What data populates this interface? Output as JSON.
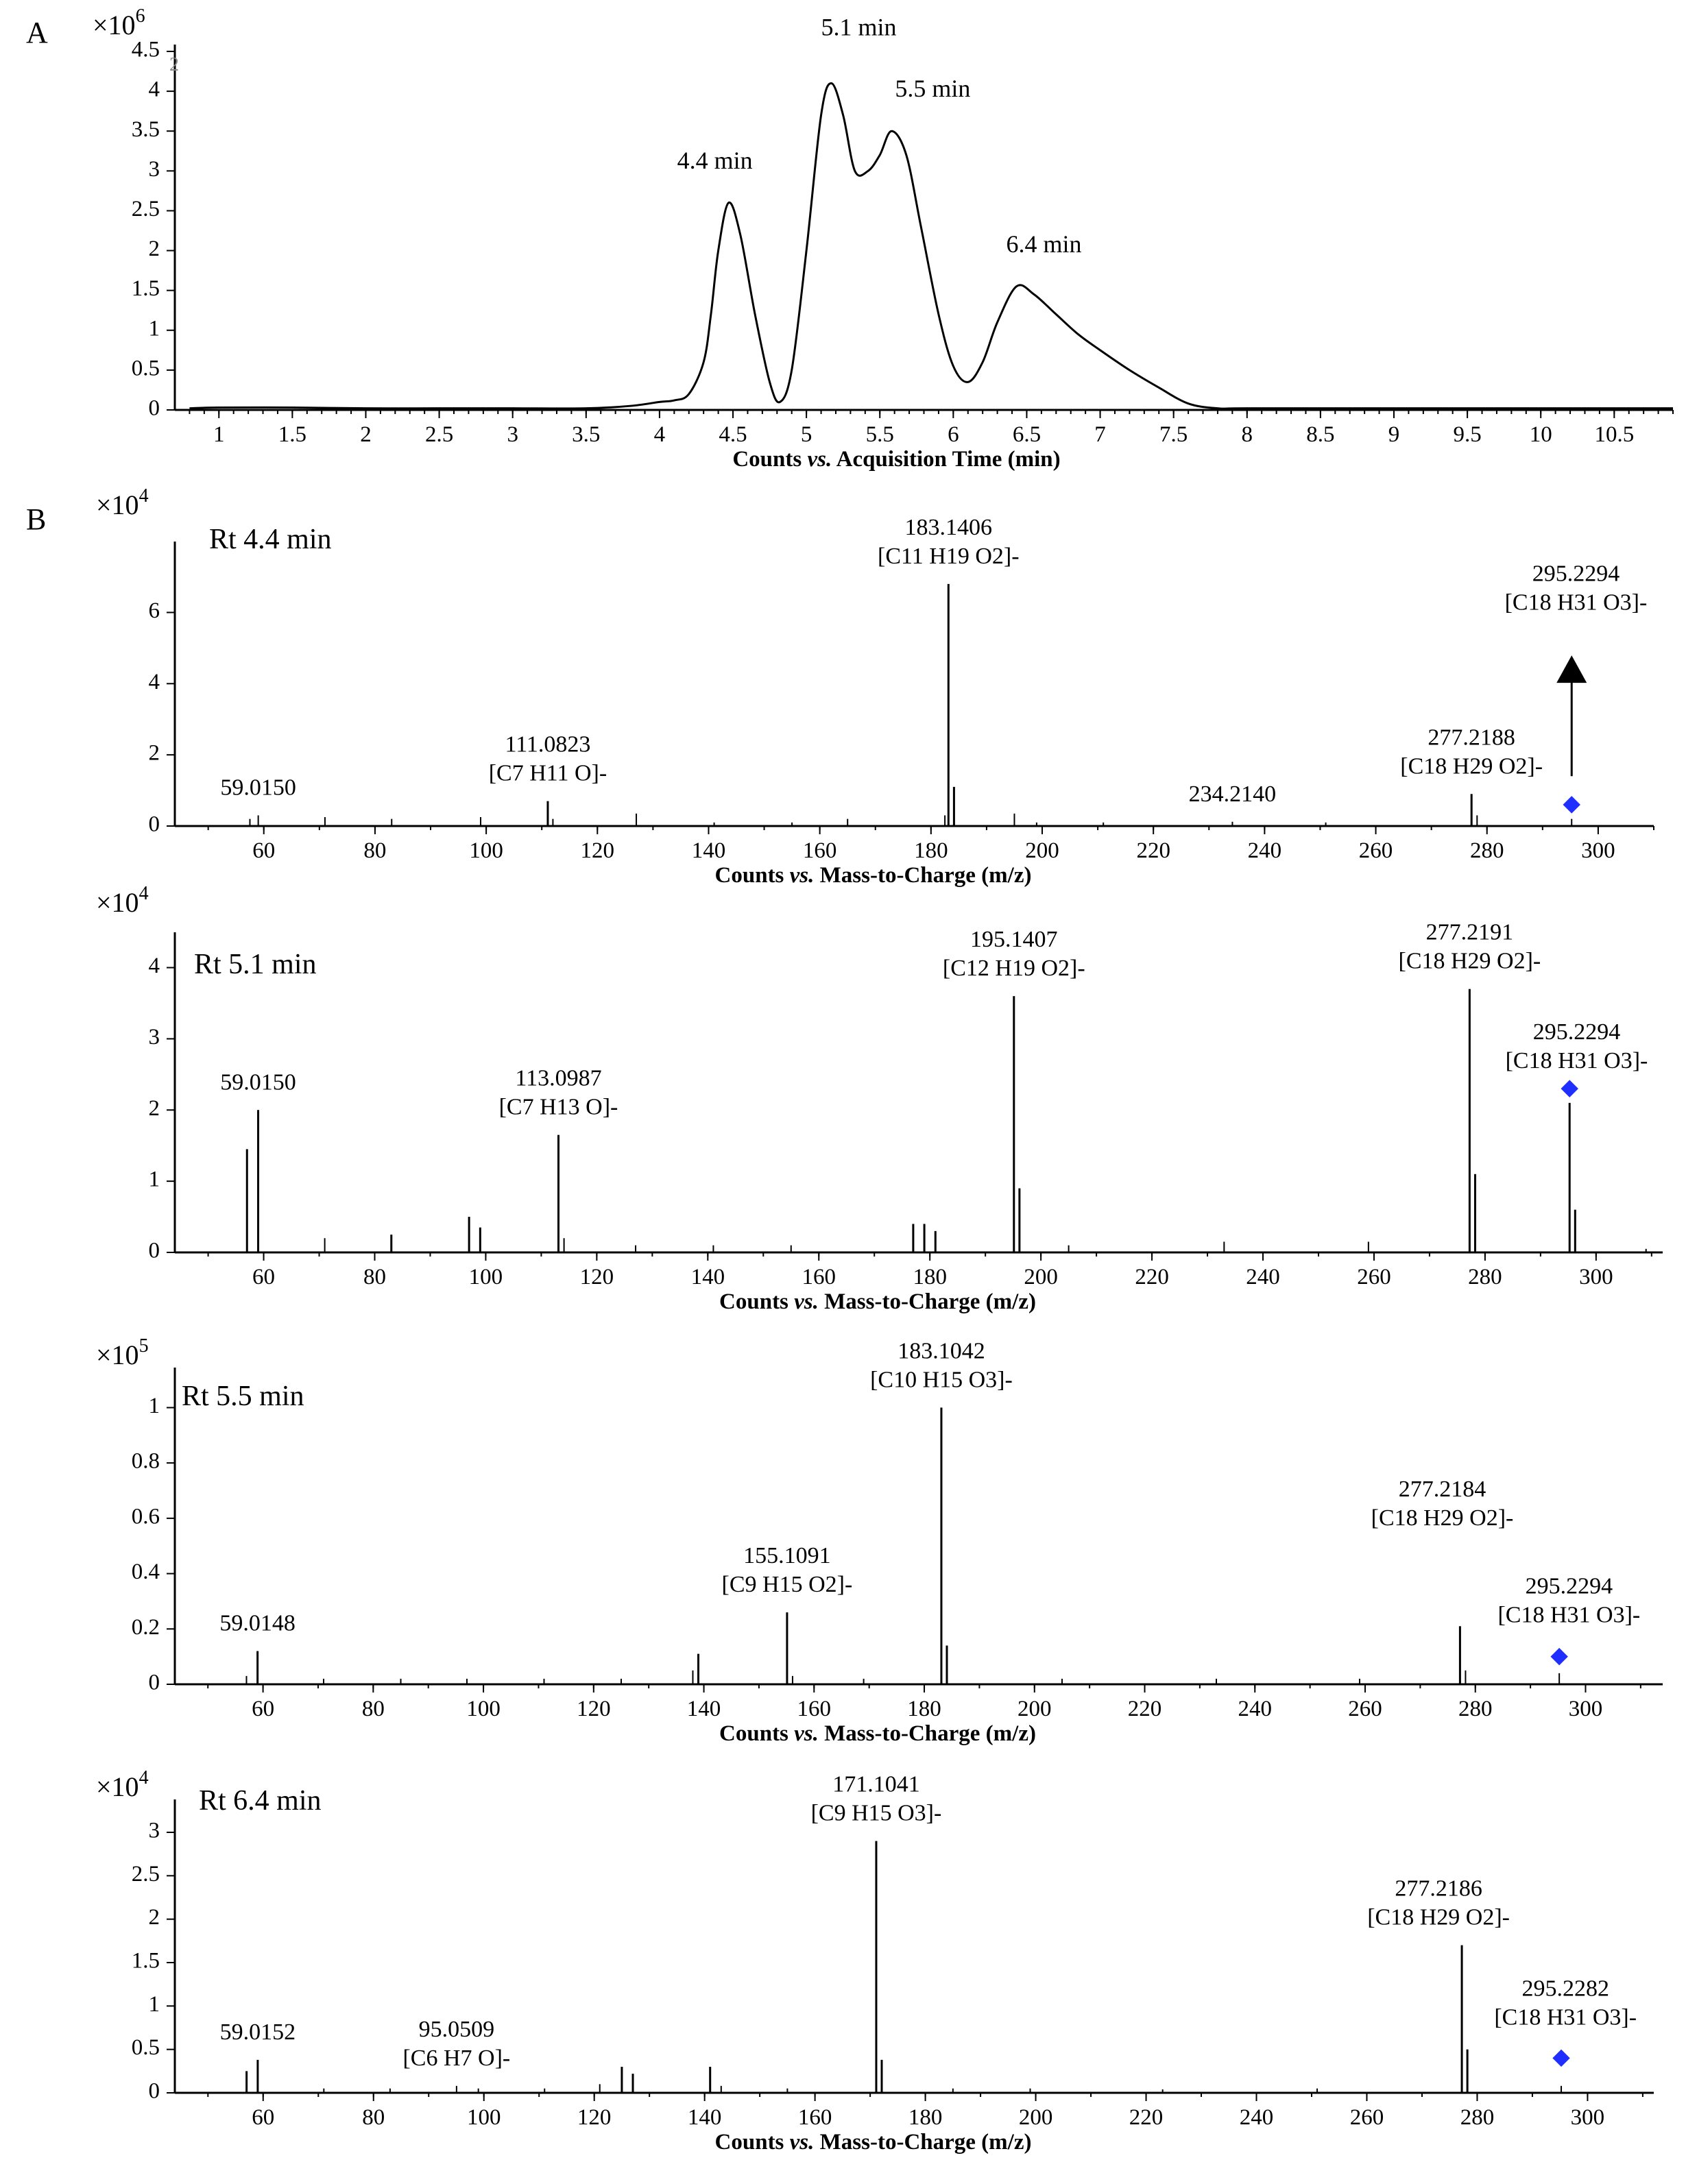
{
  "panels": {
    "a": "A",
    "b": "B"
  },
  "colors": {
    "precursor_marker": "#1f2fff",
    "line": "#000000"
  },
  "chart_data": [
    {
      "type": "line",
      "id": "tic",
      "multiplier": "×10",
      "multiplier_exp": "6",
      "corner_mark": "2",
      "xlabel_parts": [
        "Counts ",
        "vs.",
        " Acquisition Time (min)"
      ],
      "xlim": [
        0.7,
        10.9
      ],
      "ylim": [
        0,
        4.5
      ],
      "xticks": [
        1,
        1.5,
        2,
        2.5,
        3,
        3.5,
        4,
        4.5,
        5,
        5.5,
        6,
        6.5,
        7,
        7.5,
        8,
        8.5,
        9,
        9.5,
        10,
        10.5
      ],
      "xtick_labels": [
        "1",
        "1.5",
        "2",
        "2.5",
        "3",
        "3.5",
        "4",
        "4.5",
        "5",
        "5.5",
        "6",
        "6.5",
        "7",
        "7.5",
        "8",
        "8.5",
        "9",
        "9.5",
        "10",
        "10.5"
      ],
      "yticks": [
        0,
        0.5,
        1,
        1.5,
        2,
        2.5,
        3,
        3.5,
        4,
        4.5
      ],
      "ytick_labels": [
        "0",
        "0.5",
        "1",
        "1.5",
        "2",
        "2.5",
        "3",
        "3.5",
        "4",
        "4.5"
      ],
      "series": [
        {
          "x": [
            0.8,
            1.0,
            1.5,
            2.0,
            2.5,
            3.0,
            3.5,
            3.8,
            4.0,
            4.1,
            4.2,
            4.3,
            4.35,
            4.4,
            4.47,
            4.55,
            4.65,
            4.75,
            4.82,
            4.9,
            5.0,
            5.1,
            5.17,
            5.25,
            5.33,
            5.42,
            5.5,
            5.58,
            5.68,
            5.78,
            5.9,
            6.0,
            6.1,
            6.2,
            6.3,
            6.43,
            6.55,
            6.7,
            6.85,
            7.0,
            7.2,
            7.4,
            7.6,
            7.8,
            8.0,
            9.0,
            10.0,
            10.9
          ],
          "y": [
            0.02,
            0.03,
            0.03,
            0.02,
            0.02,
            0.02,
            0.02,
            0.05,
            0.1,
            0.12,
            0.2,
            0.6,
            1.2,
            2.0,
            2.6,
            2.2,
            1.2,
            0.35,
            0.1,
            0.5,
            2.0,
            3.7,
            4.1,
            3.7,
            3.0,
            3.0,
            3.2,
            3.5,
            3.2,
            2.3,
            1.2,
            0.55,
            0.35,
            0.6,
            1.1,
            1.55,
            1.45,
            1.2,
            0.95,
            0.75,
            0.5,
            0.28,
            0.08,
            0.02,
            0.02,
            0.02,
            0.02,
            0.02
          ]
        }
      ],
      "annotations": [
        {
          "text": "4.4 min",
          "x": 4.47,
          "y": 2.6
        },
        {
          "text": "5.1 min",
          "x": 5.17,
          "y": 4.1
        },
        {
          "text": "5.5 min",
          "x": 5.58,
          "y": 3.5
        },
        {
          "text": "6.4 min",
          "x": 6.43,
          "y": 1.55
        }
      ]
    },
    {
      "type": "bar",
      "id": "ms44",
      "rt_label": "Rt 4.4 min",
      "multiplier": "×10",
      "multiplier_exp": "4",
      "xlabel_parts": [
        "Counts ",
        "vs.",
        " Mass-to-Charge (m/z)"
      ],
      "xlim": [
        44,
        310
      ],
      "ylim": [
        0,
        7.8
      ],
      "xticks": [
        60,
        80,
        100,
        120,
        140,
        160,
        180,
        200,
        220,
        240,
        260,
        280,
        300
      ],
      "xtick_labels": [
        "60",
        "80",
        "100",
        "120",
        "140",
        "160",
        "180",
        "200",
        "220",
        "240",
        "260",
        "280",
        "300"
      ],
      "yticks": [
        0,
        2,
        4,
        6
      ],
      "ytick_labels": [
        "0",
        "2",
        "4",
        "6"
      ],
      "peaks": [
        [
          59.0,
          0.3
        ],
        [
          57.5,
          0.2
        ],
        [
          71.0,
          0.25
        ],
        [
          83.0,
          0.2
        ],
        [
          99.0,
          0.25
        ],
        [
          111.08,
          0.7
        ],
        [
          112.0,
          0.2
        ],
        [
          127.0,
          0.35
        ],
        [
          141.0,
          0.1
        ],
        [
          155.0,
          0.1
        ],
        [
          165.0,
          0.2
        ],
        [
          183.14,
          6.8
        ],
        [
          184.14,
          1.1
        ],
        [
          182.5,
          0.3
        ],
        [
          195.0,
          0.35
        ],
        [
          199.0,
          0.1
        ],
        [
          211.0,
          0.1
        ],
        [
          234.21,
          0.12
        ],
        [
          251.0,
          0.1
        ],
        [
          277.22,
          0.9
        ],
        [
          278.22,
          0.3
        ],
        [
          295.23,
          0.2
        ]
      ],
      "labels": [
        {
          "lines": [
            "59.0150"
          ],
          "x": 59.0,
          "y": 0.3
        },
        {
          "lines": [
            "111.0823",
            "[C7 H11 O]-"
          ],
          "x": 111.08,
          "y": 0.7
        },
        {
          "lines": [
            "183.1406",
            "[C11 H19 O2]-"
          ],
          "x": 183.14,
          "y": 6.8
        },
        {
          "lines": [
            "234.2140"
          ],
          "x": 234.21,
          "y": 0.12
        },
        {
          "lines": [
            "277.2188",
            "[C18 H29 O2]-"
          ],
          "x": 277.22,
          "y": 0.9
        },
        {
          "lines": [
            "295.2294",
            "[C18 H31 O3]-"
          ],
          "x": 296.0,
          "y": 5.5
        }
      ],
      "precursor": {
        "x": 295.23,
        "y": 0.6
      },
      "arrow": {
        "x": 295.23,
        "from_y": 1.4,
        "to_y": 4.1
      }
    },
    {
      "type": "bar",
      "id": "ms51",
      "rt_label": "Rt 5.1 min",
      "multiplier": "×10",
      "multiplier_exp": "4",
      "xlabel_parts": [
        "Counts ",
        "vs.",
        " Mass-to-Charge (m/z)"
      ],
      "xlim": [
        44,
        312
      ],
      "ylim": [
        0,
        4.4
      ],
      "xticks": [
        60,
        80,
        100,
        120,
        140,
        160,
        180,
        200,
        220,
        240,
        260,
        280,
        300
      ],
      "xtick_labels": [
        "60",
        "80",
        "100",
        "120",
        "140",
        "160",
        "180",
        "200",
        "220",
        "240",
        "260",
        "280",
        "300"
      ],
      "yticks": [
        0,
        1,
        2,
        3,
        4
      ],
      "ytick_labels": [
        "0",
        "1",
        "2",
        "3",
        "4"
      ],
      "peaks": [
        [
          57.0,
          1.45
        ],
        [
          59.01,
          2.0
        ],
        [
          71.0,
          0.2
        ],
        [
          83.0,
          0.25
        ],
        [
          97.0,
          0.5
        ],
        [
          99.0,
          0.35
        ],
        [
          113.1,
          1.65
        ],
        [
          114.1,
          0.2
        ],
        [
          127.0,
          0.1
        ],
        [
          141.0,
          0.1
        ],
        [
          155.0,
          0.1
        ],
        [
          177.0,
          0.4
        ],
        [
          179.0,
          0.4
        ],
        [
          181.0,
          0.3
        ],
        [
          195.14,
          3.6
        ],
        [
          196.14,
          0.9
        ],
        [
          205.0,
          0.1
        ],
        [
          233.0,
          0.15
        ],
        [
          259.0,
          0.15
        ],
        [
          277.22,
          3.7
        ],
        [
          278.22,
          1.1
        ],
        [
          295.23,
          2.1
        ],
        [
          296.23,
          0.6
        ],
        [
          309.0,
          0.05
        ]
      ],
      "labels": [
        {
          "lines": [
            "59.0150"
          ],
          "x": 59.01,
          "y": 2.0
        },
        {
          "lines": [
            "113.0987",
            "[C7 H13 O]-"
          ],
          "x": 113.1,
          "y": 1.65
        },
        {
          "lines": [
            "195.1407",
            "[C12 H19 O2]-"
          ],
          "x": 195.14,
          "y": 3.6
        },
        {
          "lines": [
            "277.2191",
            "[C18 H29 O2]-"
          ],
          "x": 277.22,
          "y": 3.7
        },
        {
          "lines": [
            "295.2294",
            "[C18 H31 O3]-"
          ],
          "x": 296.5,
          "y": 2.3
        }
      ],
      "precursor": {
        "x": 295.23,
        "y": 2.3
      }
    },
    {
      "type": "bar",
      "id": "ms55",
      "rt_label": "Rt 5.5 min",
      "multiplier": "×10",
      "multiplier_exp": "5",
      "xlabel_parts": [
        "Counts ",
        "vs.",
        " Mass-to-Charge (m/z)"
      ],
      "xlim": [
        44,
        314
      ],
      "ylim": [
        0,
        1.12
      ],
      "xticks": [
        60,
        80,
        100,
        120,
        140,
        160,
        180,
        200,
        220,
        240,
        260,
        280,
        300
      ],
      "xtick_labels": [
        "60",
        "80",
        "100",
        "120",
        "140",
        "160",
        "180",
        "200",
        "220",
        "240",
        "260",
        "280",
        "300"
      ],
      "yticks": [
        0,
        0.2,
        0.4,
        0.6,
        0.8,
        1
      ],
      "ytick_labels": [
        "0",
        "0.2",
        "0.4",
        "0.6",
        "0.8",
        "1"
      ],
      "peaks": [
        [
          57.0,
          0.03
        ],
        [
          59.01,
          0.12
        ],
        [
          71.0,
          0.02
        ],
        [
          85.0,
          0.02
        ],
        [
          97.0,
          0.02
        ],
        [
          111.0,
          0.02
        ],
        [
          125.0,
          0.02
        ],
        [
          139.0,
          0.11
        ],
        [
          138.0,
          0.05
        ],
        [
          155.1,
          0.26
        ],
        [
          156.1,
          0.03
        ],
        [
          169.0,
          0.02
        ],
        [
          183.1,
          1.0
        ],
        [
          184.1,
          0.14
        ],
        [
          205.0,
          0.02
        ],
        [
          233.0,
          0.02
        ],
        [
          259.0,
          0.02
        ],
        [
          277.22,
          0.21
        ],
        [
          278.22,
          0.05
        ],
        [
          295.23,
          0.04
        ]
      ],
      "labels": [
        {
          "lines": [
            "59.0148"
          ],
          "x": 59.01,
          "y": 0.12
        },
        {
          "lines": [
            "155.1091",
            "[C9 H15 O2]-"
          ],
          "x": 155.1,
          "y": 0.26
        },
        {
          "lines": [
            "183.1042",
            "[C10 H15 O3]-"
          ],
          "x": 183.1,
          "y": 1.0
        },
        {
          "lines": [
            "277.2184",
            "[C18 H29 O2]-"
          ],
          "x": 274.0,
          "y": 0.5
        },
        {
          "lines": [
            "295.2294",
            "[C18 H31 O3]-"
          ],
          "x": 297.0,
          "y": 0.15
        }
      ],
      "precursor": {
        "x": 295.23,
        "y": 0.1
      }
    },
    {
      "type": "bar",
      "id": "ms64",
      "rt_label": "Rt 6.4 min",
      "multiplier": "×10",
      "multiplier_exp": "4",
      "xlabel_parts": [
        "Counts ",
        "vs.",
        " Mass-to-Charge (m/z)"
      ],
      "xlim": [
        44,
        312
      ],
      "ylim": [
        0,
        3.3
      ],
      "xticks": [
        60,
        80,
        100,
        120,
        140,
        160,
        180,
        200,
        220,
        240,
        260,
        280,
        300
      ],
      "xtick_labels": [
        "60",
        "80",
        "100",
        "120",
        "140",
        "160",
        "180",
        "200",
        "220",
        "240",
        "260",
        "280",
        "300"
      ],
      "yticks": [
        0,
        0.5,
        1,
        1.5,
        2,
        2.5,
        3
      ],
      "ytick_labels": [
        "0",
        "0.5",
        "1",
        "1.5",
        "2",
        "2.5",
        "3"
      ],
      "peaks": [
        [
          57.0,
          0.25
        ],
        [
          59.02,
          0.38
        ],
        [
          71.0,
          0.05
        ],
        [
          83.0,
          0.05
        ],
        [
          95.05,
          0.08
        ],
        [
          99.0,
          0.05
        ],
        [
          111.0,
          0.05
        ],
        [
          121.0,
          0.1
        ],
        [
          125.0,
          0.3
        ],
        [
          127.0,
          0.22
        ],
        [
          141.0,
          0.3
        ],
        [
          143.0,
          0.08
        ],
        [
          155.0,
          0.05
        ],
        [
          171.1,
          2.9
        ],
        [
          172.1,
          0.38
        ],
        [
          185.0,
          0.05
        ],
        [
          199.0,
          0.05
        ],
        [
          223.0,
          0.04
        ],
        [
          251.0,
          0.05
        ],
        [
          277.22,
          1.7
        ],
        [
          278.22,
          0.5
        ],
        [
          295.23,
          0.08
        ]
      ],
      "labels": [
        {
          "lines": [
            "59.0152"
          ],
          "x": 59.02,
          "y": 0.38
        },
        {
          "lines": [
            "95.0509",
            "[C6 H7 O]-"
          ],
          "x": 95.05,
          "y": 0.08
        },
        {
          "lines": [
            "171.1041",
            "[C9 H15 O3]-"
          ],
          "x": 171.1,
          "y": 2.9
        },
        {
          "lines": [
            "277.2186",
            "[C18 H29 O2]-"
          ],
          "x": 273.0,
          "y": 1.7
        },
        {
          "lines": [
            "295.2282",
            "[C18 H31 O3]-"
          ],
          "x": 296.0,
          "y": 0.55
        }
      ],
      "precursor": {
        "x": 295.23,
        "y": 0.4
      }
    }
  ]
}
